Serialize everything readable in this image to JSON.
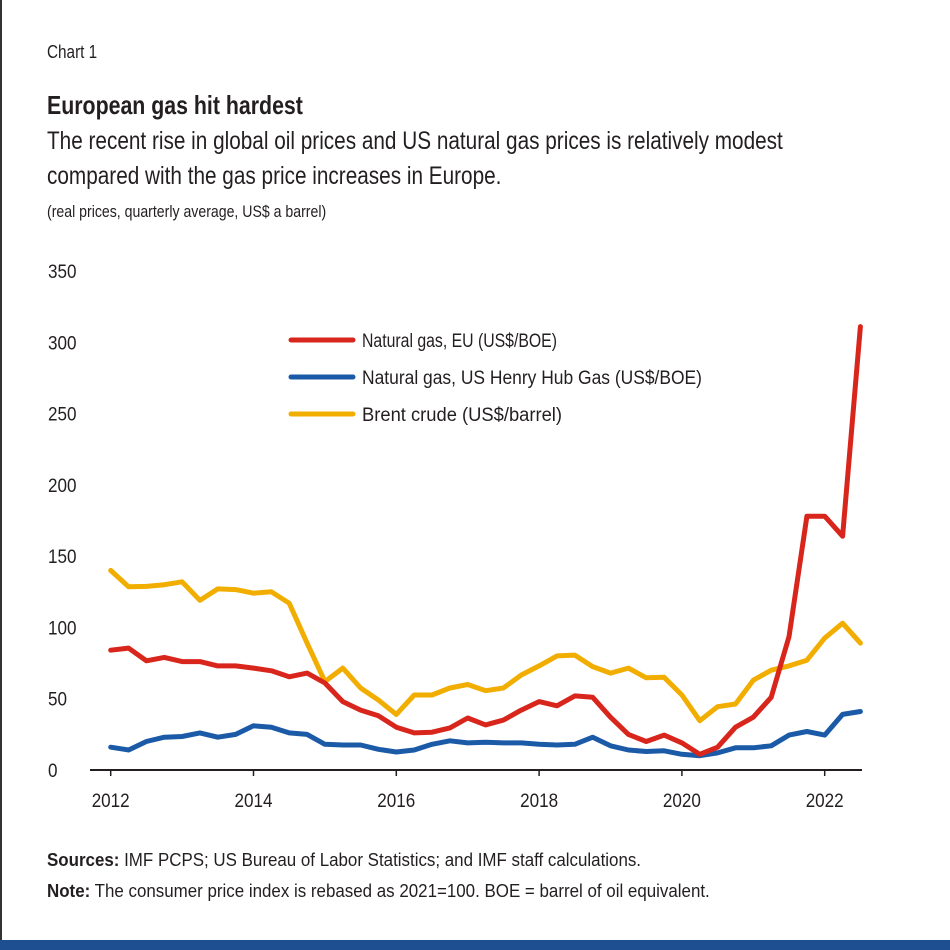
{
  "header": {
    "label": "Chart 1",
    "title": "European gas hit hardest",
    "subtitle_line1": "The recent rise in global oil prices and US natural gas prices is relatively modest",
    "subtitle_line2": "compared with the gas price increases in Europe.",
    "units": "(real prices, quarterly average, US$ a barrel)"
  },
  "footer": {
    "sources_label": "Sources:",
    "sources_text": " IMF PCPS; US Bureau of Labor Statistics; and IMF staff calculations.",
    "note_label": "Note:",
    "note_text": " The consumer price index is rebased as 2021=100. BOE = barrel of oil equivalent."
  },
  "chart_data": {
    "type": "line",
    "title": "European gas hit hardest",
    "xlabel": "",
    "ylabel": "",
    "ylim": [
      0,
      350
    ],
    "y_ticks": [
      "0",
      "50",
      "100",
      "150",
      "200",
      "250",
      "300",
      "350"
    ],
    "x_ticks": [
      "2012",
      "2014",
      "2016",
      "2018",
      "2020",
      "2022"
    ],
    "x_start": "2012Q1",
    "frequency": "quarterly",
    "grid": false,
    "legend_position": "top-center",
    "series": [
      {
        "name": "Natural gas, EU (US$/BOE)",
        "color": "#d9261c",
        "values": [
          84,
          85.5,
          76.6,
          79,
          76,
          76,
          73,
          73,
          71.5,
          69.6,
          65.4,
          68,
          61,
          48,
          42,
          38,
          30,
          26,
          26.5,
          29.5,
          36.5,
          31.6,
          35,
          42,
          48,
          45,
          52,
          51,
          37,
          25,
          20,
          24.5,
          19,
          11,
          16,
          30,
          37,
          51,
          93.5,
          178,
          178,
          164,
          311
        ]
      },
      {
        "name": "Natural gas, US Henry Hub Gas (US$/BOE)",
        "color": "#1b5aa6",
        "values": [
          16,
          14,
          20,
          23,
          23.5,
          26,
          23,
          25,
          31,
          30,
          26,
          25,
          18,
          17.5,
          17.5,
          14.5,
          12.6,
          14,
          18,
          20.5,
          19,
          19.5,
          19,
          19,
          18,
          17.5,
          18,
          23,
          17,
          14,
          13,
          13.5,
          11,
          10,
          12,
          15.6,
          15.6,
          17,
          24.5,
          27,
          24.5,
          39,
          41
        ]
      },
      {
        "name": "Brent crude (US$/barrel)",
        "color": "#f2ae00",
        "values": [
          140,
          128.5,
          128.8,
          130,
          132,
          119,
          127,
          126.5,
          124,
          125,
          117,
          89,
          62,
          71.5,
          57.5,
          49,
          39,
          52.6,
          52.6,
          57.5,
          60,
          55.6,
          57.5,
          66.6,
          73,
          80,
          80.6,
          72.5,
          68,
          71.5,
          64.7,
          65,
          52.6,
          34.6,
          44.4,
          46.3,
          63,
          70,
          73,
          77,
          92.5,
          103,
          89
        ]
      }
    ]
  }
}
